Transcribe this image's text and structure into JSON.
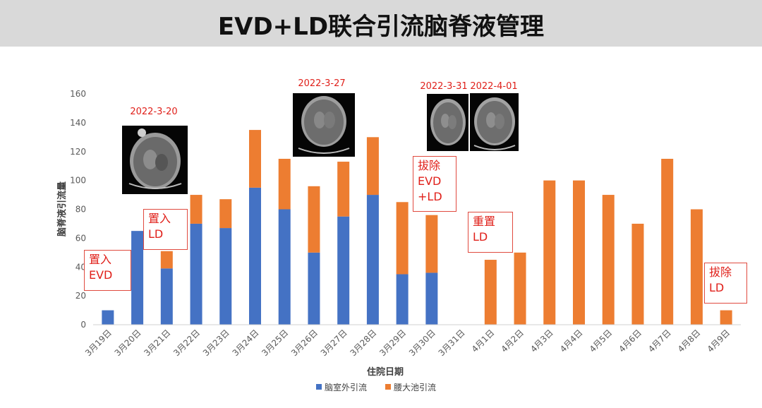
{
  "header": {
    "title": "EVD+LD联合引流脑脊液管理"
  },
  "chart_data": {
    "type": "bar",
    "stacked": true,
    "categories": [
      "3月19日",
      "3月20日",
      "3月21日",
      "3月22日",
      "3月23日",
      "3月24日",
      "3月25日",
      "3月26日",
      "3月27日",
      "3月28日",
      "3月29日",
      "3月30日",
      "3月31日",
      "4月1日",
      "4月2日",
      "4月3日",
      "4月4日",
      "4月5日",
      "4月6日",
      "4月7日",
      "4月8日",
      "4月9日"
    ],
    "series": [
      {
        "name": "脑室外引流",
        "color": "#4472c4",
        "values": [
          10,
          65,
          39,
          70,
          67,
          95,
          80,
          50,
          75,
          90,
          35,
          36,
          0,
          0,
          0,
          0,
          0,
          0,
          0,
          0,
          0,
          0
        ]
      },
      {
        "name": "腰大池引流",
        "color": "#ed7d31",
        "values": [
          0,
          0,
          12,
          20,
          20,
          40,
          35,
          46,
          38,
          40,
          50,
          40,
          0,
          45,
          50,
          100,
          100,
          90,
          70,
          115,
          80,
          10
        ]
      }
    ],
    "xlabel": "住院日期",
    "ylabel": "脑脊液引流量",
    "ylim": [
      0,
      160
    ],
    "yticks": [
      0,
      20,
      40,
      60,
      80,
      100,
      120,
      140,
      160
    ],
    "grid": false,
    "legend": "bottom"
  },
  "annotations": {
    "dates": [
      {
        "text": "2022-3-20"
      },
      {
        "text": "2022-3-27"
      },
      {
        "text": "2022-3-31"
      },
      {
        "text": "2022-4-01"
      }
    ],
    "notes": [
      {
        "lines": [
          "置入",
          "EVD"
        ]
      },
      {
        "lines": [
          "置入",
          "LD"
        ]
      },
      {
        "lines": [
          "拔除",
          "EVD",
          "+LD"
        ]
      },
      {
        "lines": [
          "重置",
          "LD"
        ]
      },
      {
        "lines": [
          "拔除",
          "LD"
        ]
      }
    ]
  }
}
